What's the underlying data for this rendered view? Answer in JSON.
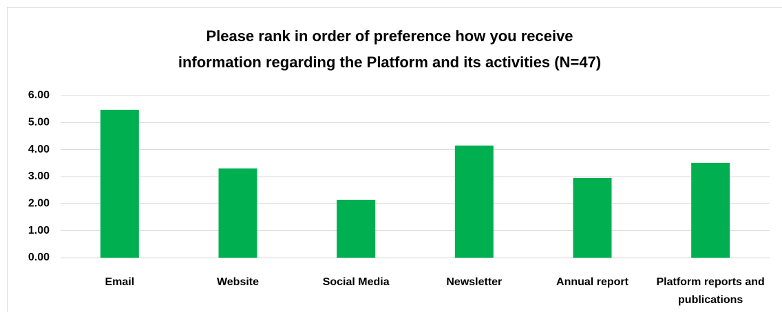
{
  "chart_data": {
    "type": "bar",
    "title": "Please rank in order of preference how you receive information regarding the Platform and its activities (N=47)",
    "categories": [
      "Email",
      "Website",
      "Social Media",
      "Newsletter",
      "Annual report",
      "Platform reports and publications"
    ],
    "values": [
      5.47,
      3.3,
      2.14,
      4.15,
      2.95,
      3.51
    ],
    "color": "#00b050",
    "ylim": [
      0,
      6
    ],
    "yticks": [
      {
        "value": 0,
        "label": "0.00"
      },
      {
        "value": 1,
        "label": "1.00"
      },
      {
        "value": 2,
        "label": "2.00"
      },
      {
        "value": 3,
        "label": "3.00"
      },
      {
        "value": 4,
        "label": "4.00"
      },
      {
        "value": 5,
        "label": "5.00"
      },
      {
        "value": 6,
        "label": "6.00"
      }
    ],
    "grid": true
  }
}
